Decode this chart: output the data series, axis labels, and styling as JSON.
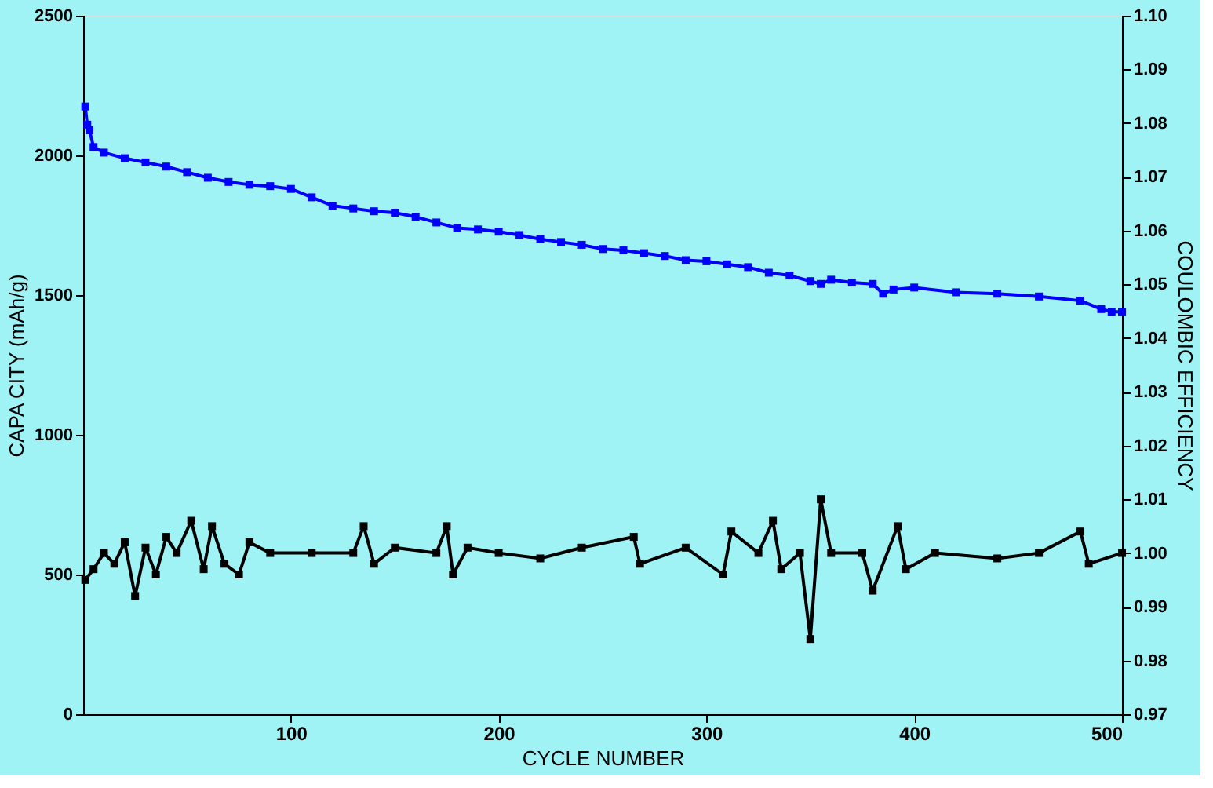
{
  "chart_data": {
    "type": "line",
    "xlabel": "CYCLE NUMBER",
    "ylabel": "CAPA CITY (mAh/g)",
    "y2label": "COULOMBIC EFFICIENCY",
    "xlim": [
      0,
      500
    ],
    "xticks": [
      100,
      200,
      300,
      400,
      500
    ],
    "ylim": [
      0,
      2500
    ],
    "yticks": [
      0,
      500,
      1000,
      1500,
      2000,
      2500
    ],
    "y2lim": [
      0.97,
      1.1
    ],
    "y2ticks": [
      {
        "value": 0.97,
        "label": "0.97"
      },
      {
        "value": 0.98,
        "label": "0.98"
      },
      {
        "value": 0.99,
        "label": "0.99"
      },
      {
        "value": 1.0,
        "label": "1.00"
      },
      {
        "value": 1.01,
        "label": "1.01"
      },
      {
        "value": 1.02,
        "label": "1.02"
      },
      {
        "value": 1.03,
        "label": "1.03"
      },
      {
        "value": 1.04,
        "label": "1.04"
      },
      {
        "value": 1.05,
        "label": "1.05"
      },
      {
        "value": 1.06,
        "label": "1.06"
      },
      {
        "value": 1.07,
        "label": "1.07"
      },
      {
        "value": 1.08,
        "label": "1.08"
      },
      {
        "value": 1.09,
        "label": "1.09"
      },
      {
        "value": 1.1,
        "label": "1.10"
      }
    ],
    "grid": false,
    "marker": "square",
    "line_style": "solid",
    "series": [
      {
        "color": "#0000ff",
        "x": [
          1,
          2,
          3,
          5,
          10,
          20,
          30,
          40,
          50,
          60,
          70,
          80,
          90,
          100,
          110,
          120,
          130,
          140,
          150,
          160,
          170,
          180,
          190,
          200,
          210,
          220,
          230,
          240,
          250,
          260,
          270,
          280,
          290,
          300,
          310,
          320,
          330,
          340,
          350,
          355,
          360,
          370,
          380,
          385,
          390,
          400,
          420,
          440,
          460,
          480,
          490,
          495,
          500
        ],
        "values": [
          2175,
          2110,
          2090,
          2030,
          2010,
          1990,
          1975,
          1960,
          1940,
          1920,
          1905,
          1895,
          1890,
          1880,
          1850,
          1820,
          1810,
          1800,
          1795,
          1780,
          1760,
          1740,
          1735,
          1727,
          1715,
          1700,
          1690,
          1680,
          1665,
          1660,
          1650,
          1640,
          1625,
          1621,
          1610,
          1600,
          1580,
          1570,
          1550,
          1540,
          1555,
          1545,
          1540,
          1505,
          1520,
          1527,
          1510,
          1505,
          1495,
          1480,
          1450,
          1440,
          1440
        ]
      },
      {
        "color": "#000000",
        "axis": "y2",
        "x": [
          1,
          5,
          10,
          15,
          20,
          25,
          30,
          35,
          40,
          45,
          52,
          58,
          62,
          68,
          75,
          80,
          90,
          110,
          130,
          135,
          140,
          150,
          170,
          175,
          178,
          185,
          200,
          220,
          240,
          265,
          268,
          290,
          308,
          312,
          325,
          332,
          336,
          345,
          350,
          355,
          360,
          375,
          380,
          392,
          396,
          410,
          440,
          460,
          480,
          484,
          500
        ],
        "values": [
          0.995,
          0.997,
          1.0,
          0.998,
          1.002,
          0.992,
          1.001,
          0.996,
          1.003,
          1.0,
          1.006,
          0.997,
          1.005,
          0.998,
          0.996,
          1.002,
          1.0,
          1.0,
          1.0,
          1.005,
          0.998,
          1.001,
          1.0,
          1.005,
          0.996,
          1.001,
          1.0,
          0.999,
          1.001,
          1.003,
          0.998,
          1.001,
          0.996,
          1.004,
          1.0,
          1.006,
          0.997,
          1.0,
          0.984,
          1.01,
          1.0,
          1.0,
          0.993,
          1.005,
          0.997,
          1.0,
          0.999,
          1.0,
          1.004,
          0.998,
          1.0
        ]
      }
    ]
  }
}
